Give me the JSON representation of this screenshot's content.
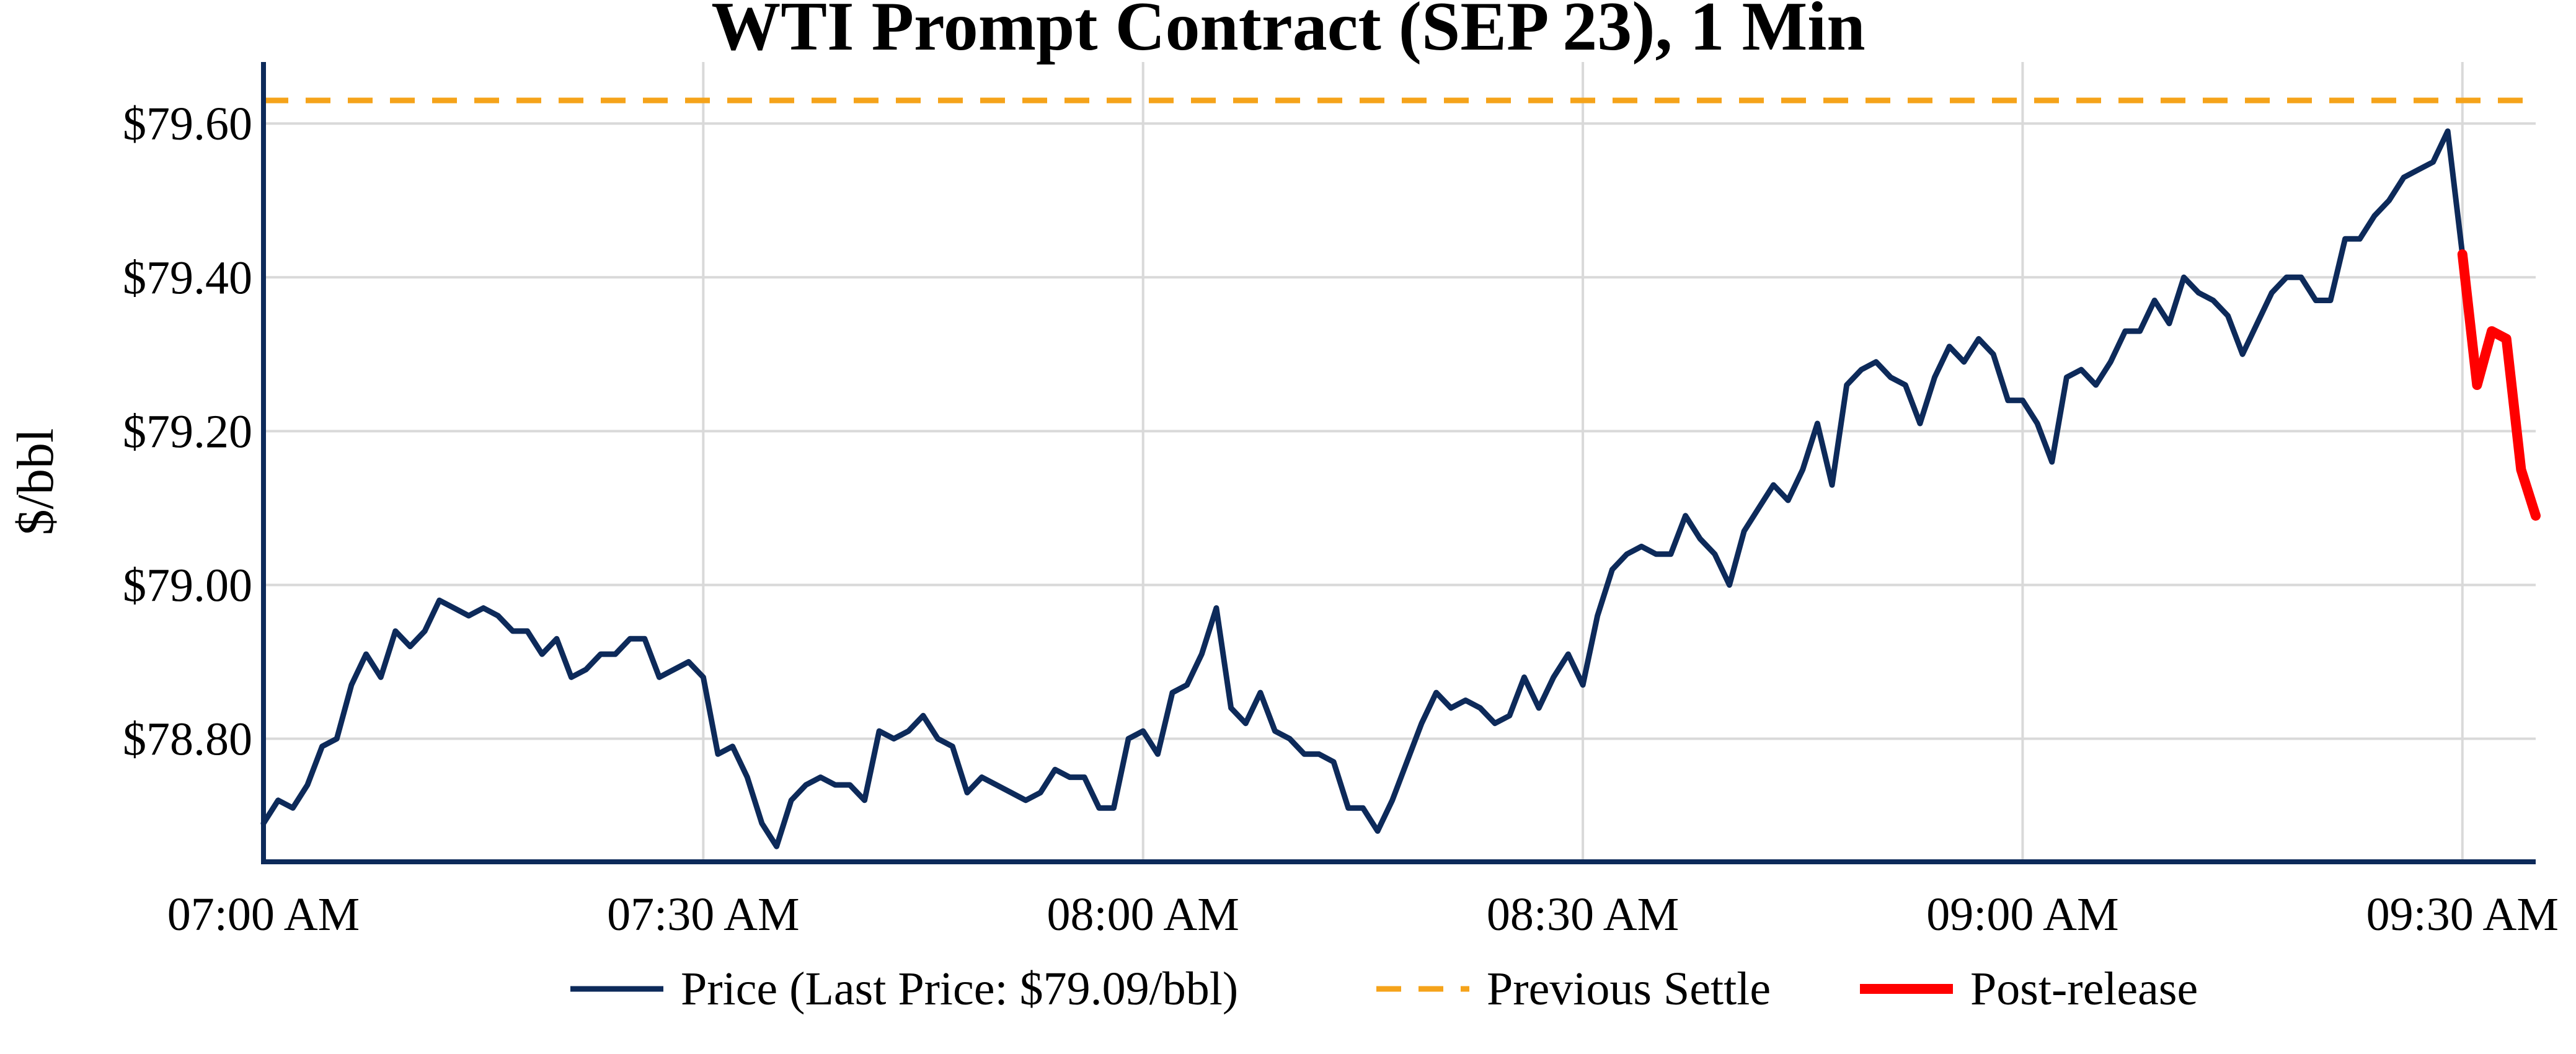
{
  "chart_data": {
    "type": "line",
    "title": "WTI Prompt Contract (SEP 23), 1 Min",
    "xlabel": "",
    "ylabel": "$/bbl",
    "x_unit": "minutes after 07:00 AM",
    "xlim": [
      0,
      155
    ],
    "ylim": [
      78.64,
      79.68
    ],
    "x_ticks": [
      {
        "value": 0,
        "label": "07:00 AM"
      },
      {
        "value": 30,
        "label": "07:30 AM"
      },
      {
        "value": 60,
        "label": "08:00 AM"
      },
      {
        "value": 90,
        "label": "08:30 AM"
      },
      {
        "value": 120,
        "label": "09:00 AM"
      },
      {
        "value": 150,
        "label": "09:30 AM"
      }
    ],
    "y_ticks": [
      {
        "value": 78.8,
        "label": "$78.80"
      },
      {
        "value": 79.0,
        "label": "$79.00"
      },
      {
        "value": 79.2,
        "label": "$79.20"
      },
      {
        "value": 79.4,
        "label": "$79.40"
      },
      {
        "value": 79.6,
        "label": "$79.60"
      }
    ],
    "grid": true,
    "legend_position": "bottom",
    "series": [
      {
        "name": "Price (Last Price: $79.09/bbl)",
        "color": "#0d2a5a",
        "style": "solid",
        "values": [
          78.69,
          78.72,
          78.71,
          78.74,
          78.79,
          78.8,
          78.87,
          78.91,
          78.88,
          78.94,
          78.92,
          78.94,
          78.98,
          78.97,
          78.96,
          78.97,
          78.96,
          78.94,
          78.94,
          78.91,
          78.93,
          78.88,
          78.89,
          78.91,
          78.91,
          78.93,
          78.93,
          78.88,
          78.89,
          78.9,
          78.88,
          78.78,
          78.79,
          78.75,
          78.69,
          78.66,
          78.72,
          78.74,
          78.75,
          78.74,
          78.74,
          78.72,
          78.81,
          78.8,
          78.81,
          78.83,
          78.8,
          78.79,
          78.73,
          78.75,
          78.74,
          78.73,
          78.72,
          78.73,
          78.76,
          78.75,
          78.75,
          78.71,
          78.71,
          78.8,
          78.81,
          78.78,
          78.86,
          78.87,
          78.91,
          78.97,
          78.84,
          78.82,
          78.86,
          78.81,
          78.8,
          78.78,
          78.78,
          78.77,
          78.71,
          78.71,
          78.68,
          78.72,
          78.77,
          78.82,
          78.86,
          78.84,
          78.85,
          78.84,
          78.82,
          78.83,
          78.88,
          78.84,
          78.88,
          78.91,
          78.87,
          78.96,
          79.02,
          79.04,
          79.05,
          79.04,
          79.04,
          79.09,
          79.06,
          79.04,
          79.0,
          79.07,
          79.1,
          79.13,
          79.11,
          79.15,
          79.21,
          79.13,
          79.26,
          79.28,
          79.29,
          79.27,
          79.26,
          79.21,
          79.27,
          79.31,
          79.29,
          79.32,
          79.3,
          79.24,
          79.24,
          79.21,
          79.16,
          79.27,
          79.28,
          79.26,
          79.29,
          79.33,
          79.33,
          79.37,
          79.34,
          79.4,
          79.38,
          79.37,
          79.35,
          79.3,
          79.34,
          79.38,
          79.4,
          79.4,
          79.37,
          79.37,
          79.45,
          79.45,
          79.48,
          79.5,
          79.53,
          79.54,
          79.55,
          79.59,
          79.43
        ]
      },
      {
        "name": "Previous Settle",
        "color": "#f5a31a",
        "style": "dashed",
        "value": 79.63
      },
      {
        "name": "Post-release",
        "color": "#ff0000",
        "style": "solid",
        "x_start": 150,
        "values": [
          79.43,
          79.26,
          79.33,
          79.32,
          79.15,
          79.09
        ]
      }
    ]
  }
}
